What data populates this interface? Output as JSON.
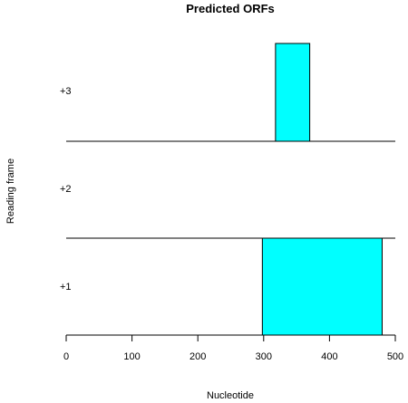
{
  "chart_data": {
    "type": "bar",
    "title": "Predicted ORFs",
    "xlabel": "Nucleotide",
    "ylabel": "Reading frame",
    "xlim": [
      0,
      500
    ],
    "xticks": [
      "0",
      "100",
      "200",
      "300",
      "400",
      "500"
    ],
    "frames": [
      "+1",
      "+2",
      "+3"
    ],
    "bar_color": "#00FFFF",
    "grid": false,
    "legend": "none",
    "series": [
      {
        "frame": "+1",
        "orfs": [
          {
            "start": 298,
            "end": 480
          }
        ]
      },
      {
        "frame": "+2",
        "orfs": []
      },
      {
        "frame": "+3",
        "orfs": [
          {
            "start": 318,
            "end": 370
          }
        ]
      }
    ]
  }
}
